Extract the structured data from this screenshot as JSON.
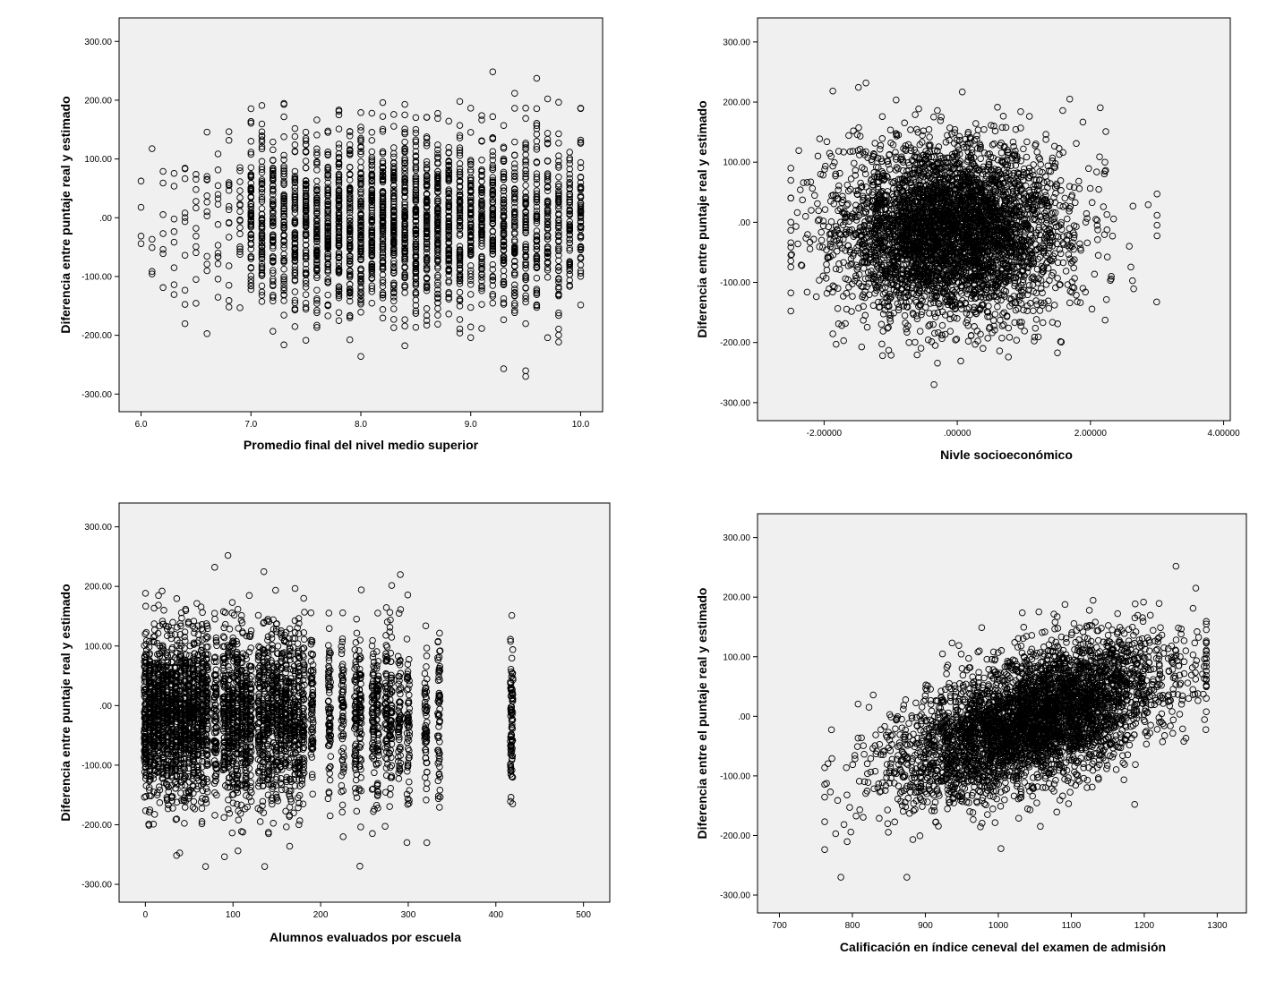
{
  "chart_data": [
    {
      "type": "scatter",
      "xlabel": "Promedio final del nivel medio superior",
      "ylabel": "Diferencia entre puntaje real y estimado",
      "xlim": [
        5.8,
        10.2
      ],
      "ylim": [
        -330,
        340
      ],
      "xticks": [
        "6.0",
        "7.0",
        "8.0",
        "9.0",
        "10.0"
      ],
      "yticks": [
        "300.00",
        "200.00",
        "100.00",
        ".00",
        "-100.00",
        "-200.00",
        "-300.00"
      ],
      "x_tick_values": [
        6,
        7,
        8,
        9,
        10
      ],
      "y_tick_values": [
        300,
        200,
        100,
        0,
        -100,
        -200,
        -300
      ],
      "marker": "open-circle",
      "background": "#f0f0f0",
      "n_points_approx": 9000,
      "x_values_discrete_step": 0.1,
      "x_dense_range": [
        7.0,
        10.0
      ],
      "y_range_observed": [
        -270,
        252
      ],
      "y_center": -10
    },
    {
      "type": "scatter",
      "xlabel": "Nivle socioeconómico",
      "ylabel": "Diferencia entre puntaje real y estimado",
      "xlim": [
        -3.0,
        4.1
      ],
      "ylim": [
        -330,
        340
      ],
      "xticks": [
        "-2.00000",
        ".00000",
        "2.00000",
        "4.00000"
      ],
      "yticks": [
        "300.00",
        "200.00",
        "100.00",
        ".00",
        "-100.00",
        "-200.00",
        "-300.00"
      ],
      "x_tick_values": [
        -2,
        0,
        2,
        4
      ],
      "y_tick_values": [
        300,
        200,
        100,
        0,
        -100,
        -200,
        -300
      ],
      "marker": "open-circle",
      "background": "#f0f0f0",
      "n_points_approx": 9000,
      "x_range_observed": [
        -2.5,
        3.0
      ],
      "x_center": -0.1,
      "y_range_observed": [
        -270,
        252
      ],
      "y_center": -15
    },
    {
      "type": "scatter",
      "xlabel": "Alumnos evaluados por escuela",
      "ylabel": "Diferencia entre puntaje real y estimado",
      "xlim": [
        -30,
        530
      ],
      "ylim": [
        -330,
        340
      ],
      "xticks": [
        "0",
        "100",
        "200",
        "300",
        "400",
        "500"
      ],
      "yticks": [
        "300.00",
        "200.00",
        "100.00",
        ".00",
        "-100.00",
        "-200.00",
        "-300.00"
      ],
      "x_tick_values": [
        0,
        100,
        200,
        300,
        400,
        500
      ],
      "y_tick_values": [
        300,
        200,
        100,
        0,
        -100,
        -200,
        -300
      ],
      "marker": "open-circle",
      "background": "#f0f0f0",
      "n_points_approx": 9000,
      "x_groups": [
        0,
        5,
        10,
        15,
        20,
        25,
        30,
        35,
        40,
        45,
        50,
        55,
        60,
        65,
        70,
        80,
        90,
        95,
        100,
        105,
        110,
        115,
        120,
        130,
        135,
        140,
        145,
        150,
        155,
        160,
        165,
        170,
        175,
        180,
        190,
        210,
        225,
        240,
        245,
        260,
        265,
        275,
        280,
        290,
        300,
        320,
        335,
        418
      ],
      "y_range_observed": [
        -270,
        252
      ],
      "y_center": -20
    },
    {
      "type": "scatter",
      "xlabel": "Calificación  en índice ceneval del examen de admisión",
      "ylabel": "Diferencia entre el puntaje real y estimado",
      "xlim": [
        670,
        1340
      ],
      "ylim": [
        -330,
        340
      ],
      "xticks": [
        "700",
        "800",
        "900",
        "1000",
        "1100",
        "1200",
        "1300"
      ],
      "yticks": [
        "300.00",
        "200.00",
        "100.00",
        ".00",
        "-100.00",
        "-200.00",
        "-300.00"
      ],
      "x_tick_values": [
        700,
        800,
        900,
        1000,
        1100,
        1200,
        1300
      ],
      "y_tick_values": [
        300,
        200,
        100,
        0,
        -100,
        -200,
        -300
      ],
      "marker": "open-circle",
      "background": "#f0f0f0",
      "n_points_approx": 9000,
      "x_range_observed": [
        762,
        1285
      ],
      "trend": {
        "slope_per_100": 40,
        "y_at_1000": -25
      },
      "y_range_observed": [
        -270,
        252
      ]
    }
  ]
}
